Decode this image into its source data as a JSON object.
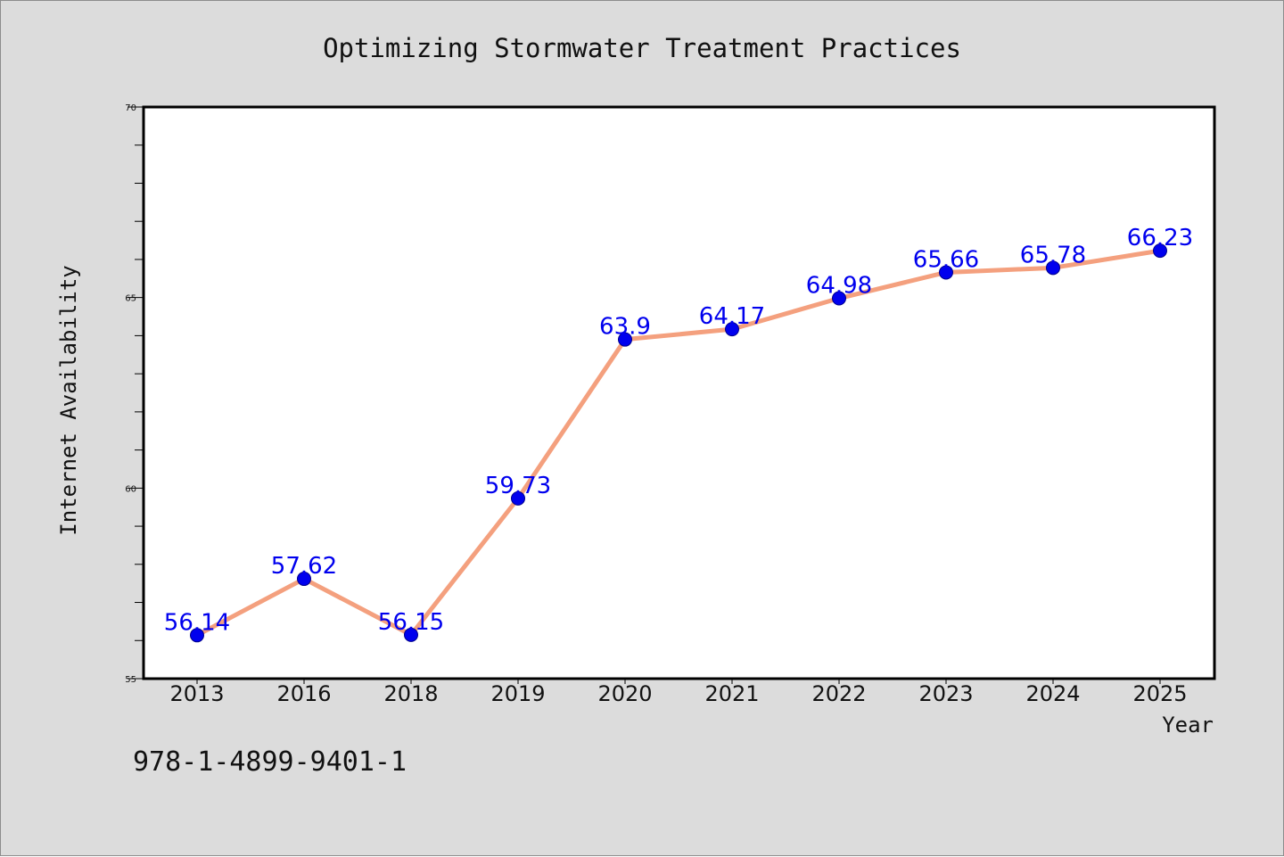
{
  "chart_data": {
    "type": "line",
    "title": "Optimizing Stormwater Treatment Practices",
    "xlabel": "Year",
    "ylabel": "Internet Availability",
    "categories": [
      "2013",
      "2016",
      "2018",
      "2019",
      "2020",
      "2021",
      "2022",
      "2023",
      "2024",
      "2025"
    ],
    "series": [
      {
        "values": [
          56.14,
          57.62,
          56.15,
          59.73,
          63.9,
          64.17,
          64.98,
          65.66,
          65.78,
          66.23
        ],
        "labels": [
          "56.14",
          "57.62",
          "56.15",
          "59.73",
          "63.9",
          "64.17",
          "64.98",
          "65.66",
          "65.78",
          "66.23"
        ],
        "line_color": "#f4a07e",
        "marker_color": "#0000ee",
        "label_color": "#0000ee"
      }
    ],
    "ylim": [
      55,
      70
    ],
    "yticks": [
      55,
      60,
      65,
      70
    ],
    "ytick_labels": [
      "55",
      "60",
      "65",
      "70"
    ],
    "y_minor_step": 1,
    "grid": false,
    "legend": "none"
  },
  "footnote": "978-1-4899-9401-1",
  "colors": {
    "figure_background": "#dcdcdc",
    "plot_background": "#ffffff",
    "axis": "#000000"
  }
}
